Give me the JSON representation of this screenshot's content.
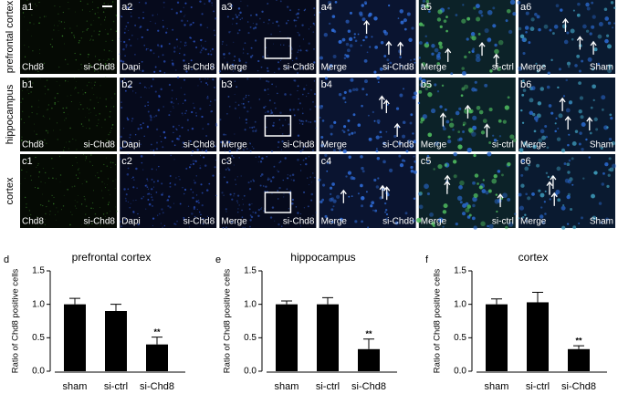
{
  "panels": {
    "rows": [
      {
        "label": "prefrontal cortex",
        "cells": [
          {
            "id": "a1",
            "stain": "Chd8",
            "condition": "si-Chd8"
          },
          {
            "id": "a2",
            "stain": "Dapi",
            "condition": "si-Chd8"
          },
          {
            "id": "a3",
            "stain": "Merge",
            "condition": "si-Chd8"
          },
          {
            "id": "a4",
            "stain": "Merge",
            "condition": "si-Chd8"
          },
          {
            "id": "a5",
            "stain": "Merge",
            "condition": "si-ctrl"
          },
          {
            "id": "a6",
            "stain": "Merge",
            "condition": "Sham"
          }
        ]
      },
      {
        "label": "hippocampus",
        "cells": [
          {
            "id": "b1",
            "stain": "Chd8",
            "condition": "si-Chd8"
          },
          {
            "id": "b2",
            "stain": "Dapi",
            "condition": "si-Chd8"
          },
          {
            "id": "b3",
            "stain": "Merge",
            "condition": "si-Chd8"
          },
          {
            "id": "b4",
            "stain": "Merge",
            "condition": "si-Chd8"
          },
          {
            "id": "b5",
            "stain": "Merge",
            "condition": "si-ctrl"
          },
          {
            "id": "b6",
            "stain": "Merge",
            "condition": "Sham"
          }
        ]
      },
      {
        "label": "cortex",
        "cells": [
          {
            "id": "c1",
            "stain": "Chd8",
            "condition": "si-Chd8"
          },
          {
            "id": "c2",
            "stain": "Dapi",
            "condition": "si-Chd8"
          },
          {
            "id": "c3",
            "stain": "Merge",
            "condition": "si-Chd8"
          },
          {
            "id": "c4",
            "stain": "Merge",
            "condition": "si-Chd8"
          },
          {
            "id": "c5",
            "stain": "Merge",
            "condition": "si-ctrl"
          },
          {
            "id": "c6",
            "stain": "Merge",
            "condition": "Sham"
          }
        ]
      }
    ]
  },
  "chart_data": [
    {
      "type": "bar",
      "label": "d",
      "title": "prefrontal cortex",
      "y_label": "Ratio of Chd8 positive cells",
      "categories": [
        "sham",
        "si-ctrl",
        "si-Chd8"
      ],
      "values": [
        1.0,
        0.9,
        0.4
      ],
      "errors": [
        0.09,
        0.1,
        0.11
      ],
      "significance": [
        null,
        null,
        "**"
      ],
      "color": "#000000",
      "ylim": [
        0,
        1.5
      ],
      "yticks": [
        {
          "value": 0,
          "label": "0.0"
        },
        {
          "value": 0.5,
          "label": "0.5"
        },
        {
          "value": 1,
          "label": "1.0"
        },
        {
          "value": 1.5,
          "label": "1.5"
        }
      ]
    },
    {
      "type": "bar",
      "label": "e",
      "title": "hippocampus",
      "y_label": "Ratio of Chd8 positive cells",
      "categories": [
        "sham",
        "si-ctrl",
        "si-Chd8"
      ],
      "values": [
        1.0,
        1.0,
        0.33
      ],
      "errors": [
        0.05,
        0.1,
        0.15
      ],
      "significance": [
        null,
        null,
        "**"
      ],
      "color": "#000000",
      "ylim": [
        0,
        1.5
      ],
      "yticks": [
        {
          "value": 0,
          "label": "0.0"
        },
        {
          "value": 0.5,
          "label": "0.5"
        },
        {
          "value": 1,
          "label": "1.0"
        },
        {
          "value": 1.5,
          "label": "1.5"
        }
      ]
    },
    {
      "type": "bar",
      "label": "f",
      "title": "cortex",
      "y_label": "Ratio of Chd8 positive cells",
      "categories": [
        "sham",
        "si-ctrl",
        "si-Chd8"
      ],
      "values": [
        1.0,
        1.03,
        0.33
      ],
      "errors": [
        0.08,
        0.15,
        0.05
      ],
      "significance": [
        null,
        null,
        "**"
      ],
      "color": "#000000",
      "ylim": [
        0,
        1.5
      ],
      "yticks": [
        {
          "value": 0,
          "label": "0.0"
        },
        {
          "value": 0.5,
          "label": "0.5"
        },
        {
          "value": 1,
          "label": "1.0"
        },
        {
          "value": 1.5,
          "label": "1.5"
        }
      ]
    }
  ]
}
